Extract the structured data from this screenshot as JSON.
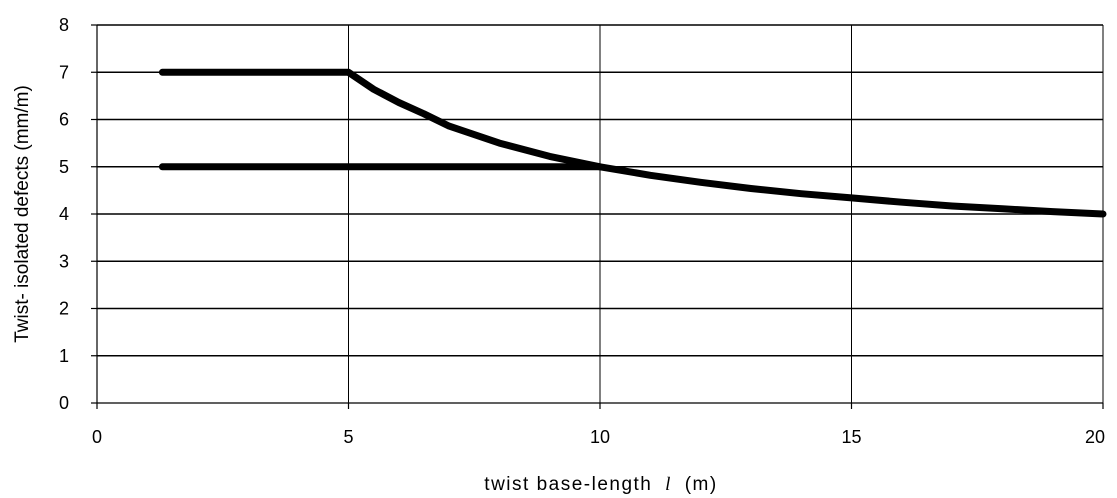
{
  "chart_data": {
    "type": "line",
    "title": "",
    "xlabel_main": "twist base-length",
    "xlabel_var": "l",
    "xlabel_unit": "(m)",
    "ylabel": "Twist- isolated defects (mm/m)",
    "xlim": [
      0,
      20
    ],
    "ylim": [
      0,
      8
    ],
    "xticks": [
      0,
      5,
      10,
      15,
      20
    ],
    "yticks": [
      0,
      1,
      2,
      3,
      4,
      5,
      6,
      7,
      8
    ],
    "grid": true,
    "legend": "none",
    "series": [
      {
        "x": [
          1.3,
          5,
          5.5,
          6,
          6.5,
          7,
          8,
          9,
          10,
          11,
          12,
          13,
          14,
          15,
          16,
          17,
          18,
          19,
          20
        ],
        "y": [
          7,
          7,
          6.64,
          6.36,
          6.12,
          5.86,
          5.5,
          5.22,
          5.0,
          4.82,
          4.67,
          4.54,
          4.43,
          4.34,
          4.25,
          4.17,
          4.11,
          4.05,
          4.0
        ],
        "color": "#000000"
      },
      {
        "x": [
          1.3,
          10
        ],
        "y": [
          5,
          5
        ],
        "color": "#000000"
      }
    ]
  }
}
